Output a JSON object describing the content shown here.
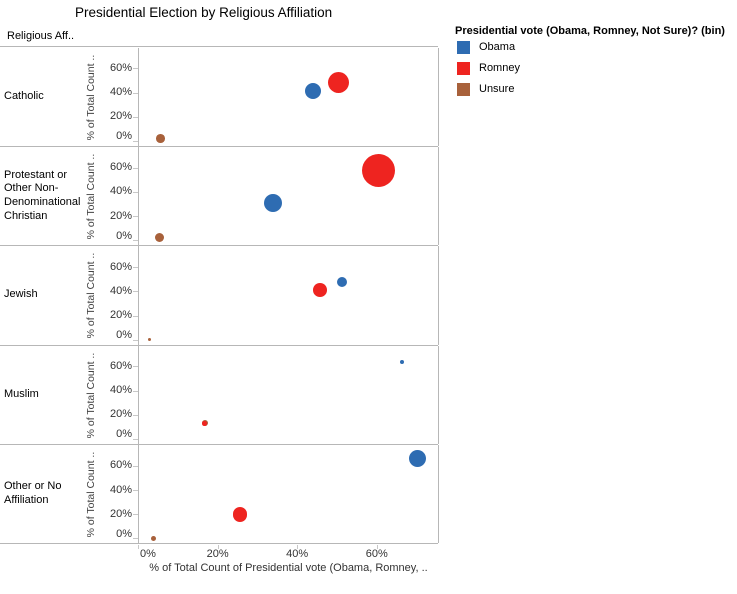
{
  "title": "Presidential Election by Religious Affiliation",
  "row_dimension_header": "Religious Aff..",
  "legend": {
    "title": "Presidential vote (Obama, Romney, Not Sure)? (bin)",
    "items": [
      {
        "label": "Obama",
        "color": "#2E6CB2"
      },
      {
        "label": "Romney",
        "color": "#EE2420"
      },
      {
        "label": "Unsure",
        "color": "#A8613B"
      }
    ]
  },
  "chart_data": {
    "type": "scatter",
    "title": "Presidential Election by Religious Affiliation",
    "xlabel": "% of Total Count of Presidential vote (Obama, Romney, ..",
    "ylabel": "% of Total Count ..",
    "x_ticks": [
      0,
      20,
      40,
      60
    ],
    "y_ticks": [
      0,
      20,
      40,
      60
    ],
    "x_range": [
      0,
      75
    ],
    "y_range": [
      0,
      75
    ],
    "grid": "off",
    "legend_position": "top-right",
    "series_colors": {
      "Obama": "#2E6CB2",
      "Romney": "#EE2420",
      "Unsure": "#A8613B"
    },
    "panels": [
      {
        "category": "Catholic",
        "points": [
          {
            "series": "Unsure",
            "x": 5.4,
            "y": 2,
            "r": 4.3
          },
          {
            "series": "Obama",
            "x": 43.7,
            "y": 41,
            "r": 8
          },
          {
            "series": "Romney",
            "x": 50,
            "y": 48,
            "r": 10.5
          }
        ]
      },
      {
        "category": "Protestant or Other Non-Denominational Christian",
        "points": [
          {
            "series": "Unsure",
            "x": 5.2,
            "y": 2,
            "r": 4.5
          },
          {
            "series": "Obama",
            "x": 33.6,
            "y": 31,
            "r": 9
          },
          {
            "series": "Romney",
            "x": 60.2,
            "y": 58,
            "r": 16.5
          }
        ]
      },
      {
        "category": "Jewish",
        "points": [
          {
            "series": "Unsure",
            "x": 2.7,
            "y": 0,
            "r": 1.6
          },
          {
            "series": "Obama",
            "x": 51,
            "y": 48,
            "r": 5
          },
          {
            "series": "Romney",
            "x": 45.5,
            "y": 41,
            "r": 6.9
          }
        ]
      },
      {
        "category": "Muslim",
        "points": [
          {
            "series": "Unsure",
            "x": 16.5,
            "y": 13,
            "r": 3
          },
          {
            "series": "Obama",
            "x": 66.2,
            "y": 64,
            "r": 2
          },
          {
            "series": "Romney",
            "x": 16.5,
            "y": 13,
            "r": 2.2
          }
        ]
      },
      {
        "category": "Other or No Affiliation",
        "points": [
          {
            "series": "Unsure",
            "x": 3.7,
            "y": 0,
            "r": 2.7
          },
          {
            "series": "Obama",
            "x": 69.9,
            "y": 66,
            "r": 8.7
          },
          {
            "series": "Romney",
            "x": 25.4,
            "y": 20,
            "r": 7.3
          }
        ]
      }
    ]
  }
}
